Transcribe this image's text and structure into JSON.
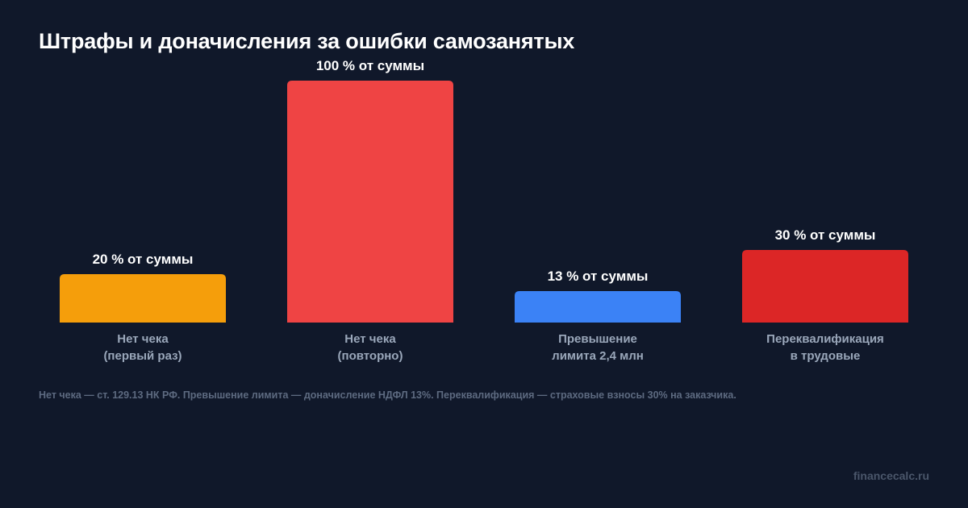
{
  "title": "Штрафы и доначисления за ошибки самозанятых",
  "footnote": "Нет чека — ст. 129.13 НК РФ. Превышение лимита — доначисление НДФЛ 13%. Переквалификация — страховые взносы 30% на заказчика.",
  "watermark": "financecalc.ru",
  "chart_data": {
    "type": "bar",
    "categories": [
      [
        "Нет чека",
        "(первый раз)"
      ],
      [
        "Нет чека",
        "(повторно)"
      ],
      [
        "Превышение",
        "лимита 2,4 млн"
      ],
      [
        "Переквалификация",
        "в трудовые"
      ]
    ],
    "values": [
      20,
      100,
      13,
      30
    ],
    "value_labels": [
      "20 % от суммы",
      "100 % от суммы",
      "13 % от суммы",
      "30 % от суммы"
    ],
    "colors": [
      "#f59e0b",
      "#ef4444",
      "#3b82f6",
      "#dc2626"
    ],
    "ylim": [
      0,
      100
    ],
    "grid": false,
    "legend": "none"
  }
}
